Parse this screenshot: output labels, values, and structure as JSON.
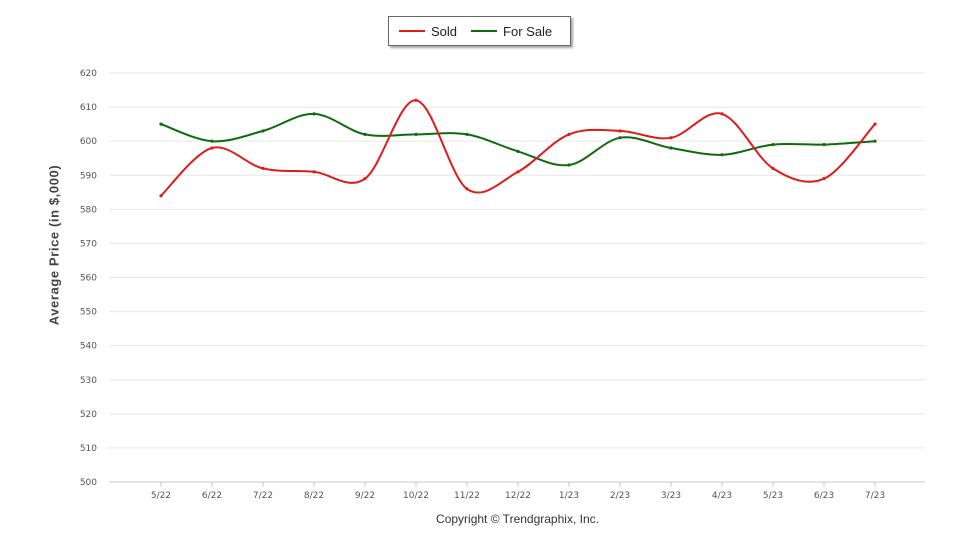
{
  "chart_data": {
    "type": "line",
    "title": "",
    "xlabel": "",
    "ylabel": "Average Price (in $,000)",
    "ylim": [
      500,
      620
    ],
    "yticks": [
      500,
      510,
      520,
      530,
      540,
      550,
      560,
      570,
      580,
      590,
      600,
      610,
      620
    ],
    "grid": true,
    "legend_position": "top-center",
    "categories": [
      "5/22",
      "6/22",
      "7/22",
      "8/22",
      "9/22",
      "10/22",
      "11/22",
      "12/22",
      "1/23",
      "2/23",
      "3/23",
      "4/23",
      "5/23",
      "6/23",
      "7/23"
    ],
    "series": [
      {
        "name": "Sold",
        "color": "#dd1c1c",
        "values": [
          584,
          598,
          592,
          591,
          589,
          612,
          586,
          591,
          602,
          603,
          601,
          608,
          592,
          589,
          605
        ]
      },
      {
        "name": "For Sale",
        "color": "#0d6b0d",
        "values": [
          605,
          600,
          603,
          608,
          602,
          602,
          602,
          597,
          593,
          601,
          598,
          596,
          599,
          599,
          600
        ]
      }
    ],
    "footer": "Copyright © Trendgraphix, Inc."
  }
}
